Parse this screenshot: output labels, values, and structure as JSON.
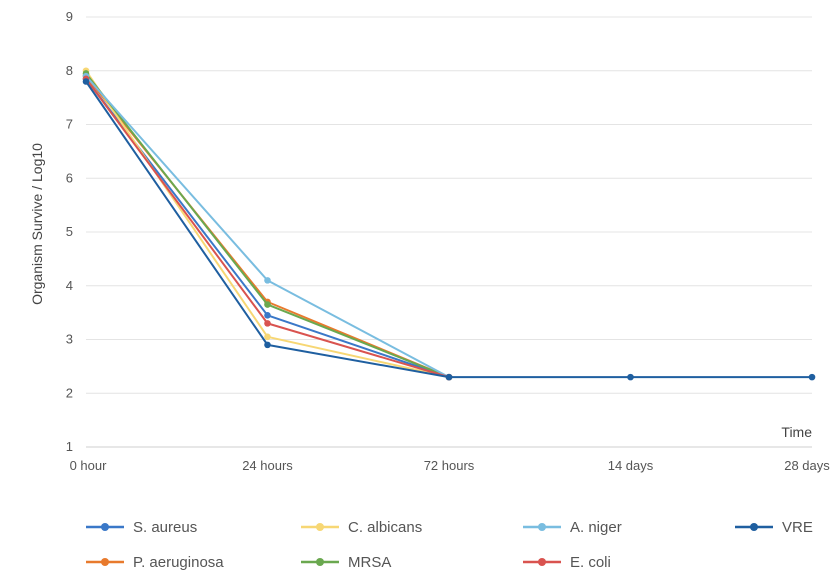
{
  "chart_data": {
    "type": "line",
    "title": "",
    "xlabel": "Time",
    "ylabel": "Organism Survive / Log10",
    "categories": [
      "0 hour",
      "24 hours",
      "72 hours",
      "14 days",
      "28 days"
    ],
    "ylim": [
      1,
      9
    ],
    "yticks": [
      1,
      2,
      3,
      4,
      5,
      6,
      7,
      8,
      9
    ],
    "grid": "horizontal",
    "legend_position": "bottom",
    "series": [
      {
        "name": "S. aureus",
        "color": "#3a78c8",
        "values": [
          7.85,
          3.45,
          2.3,
          null,
          null
        ]
      },
      {
        "name": "P. aeruginosa",
        "color": "#e87a2d",
        "values": [
          7.9,
          3.7,
          2.3,
          null,
          null
        ]
      },
      {
        "name": "C. albicans",
        "color": "#f7d774",
        "values": [
          8.0,
          3.05,
          2.3,
          null,
          null
        ]
      },
      {
        "name": "MRSA",
        "color": "#6aa84f",
        "values": [
          7.95,
          3.65,
          2.3,
          null,
          null
        ]
      },
      {
        "name": "A. niger",
        "color": "#79bde0",
        "values": [
          7.9,
          4.1,
          2.3,
          null,
          null
        ]
      },
      {
        "name": "E. coli",
        "color": "#d9534f",
        "values": [
          7.85,
          3.3,
          2.3,
          null,
          null
        ]
      },
      {
        "name": "VRE",
        "color": "#1f5fa0",
        "values": [
          7.8,
          2.9,
          2.3,
          2.3,
          2.3
        ]
      }
    ]
  }
}
